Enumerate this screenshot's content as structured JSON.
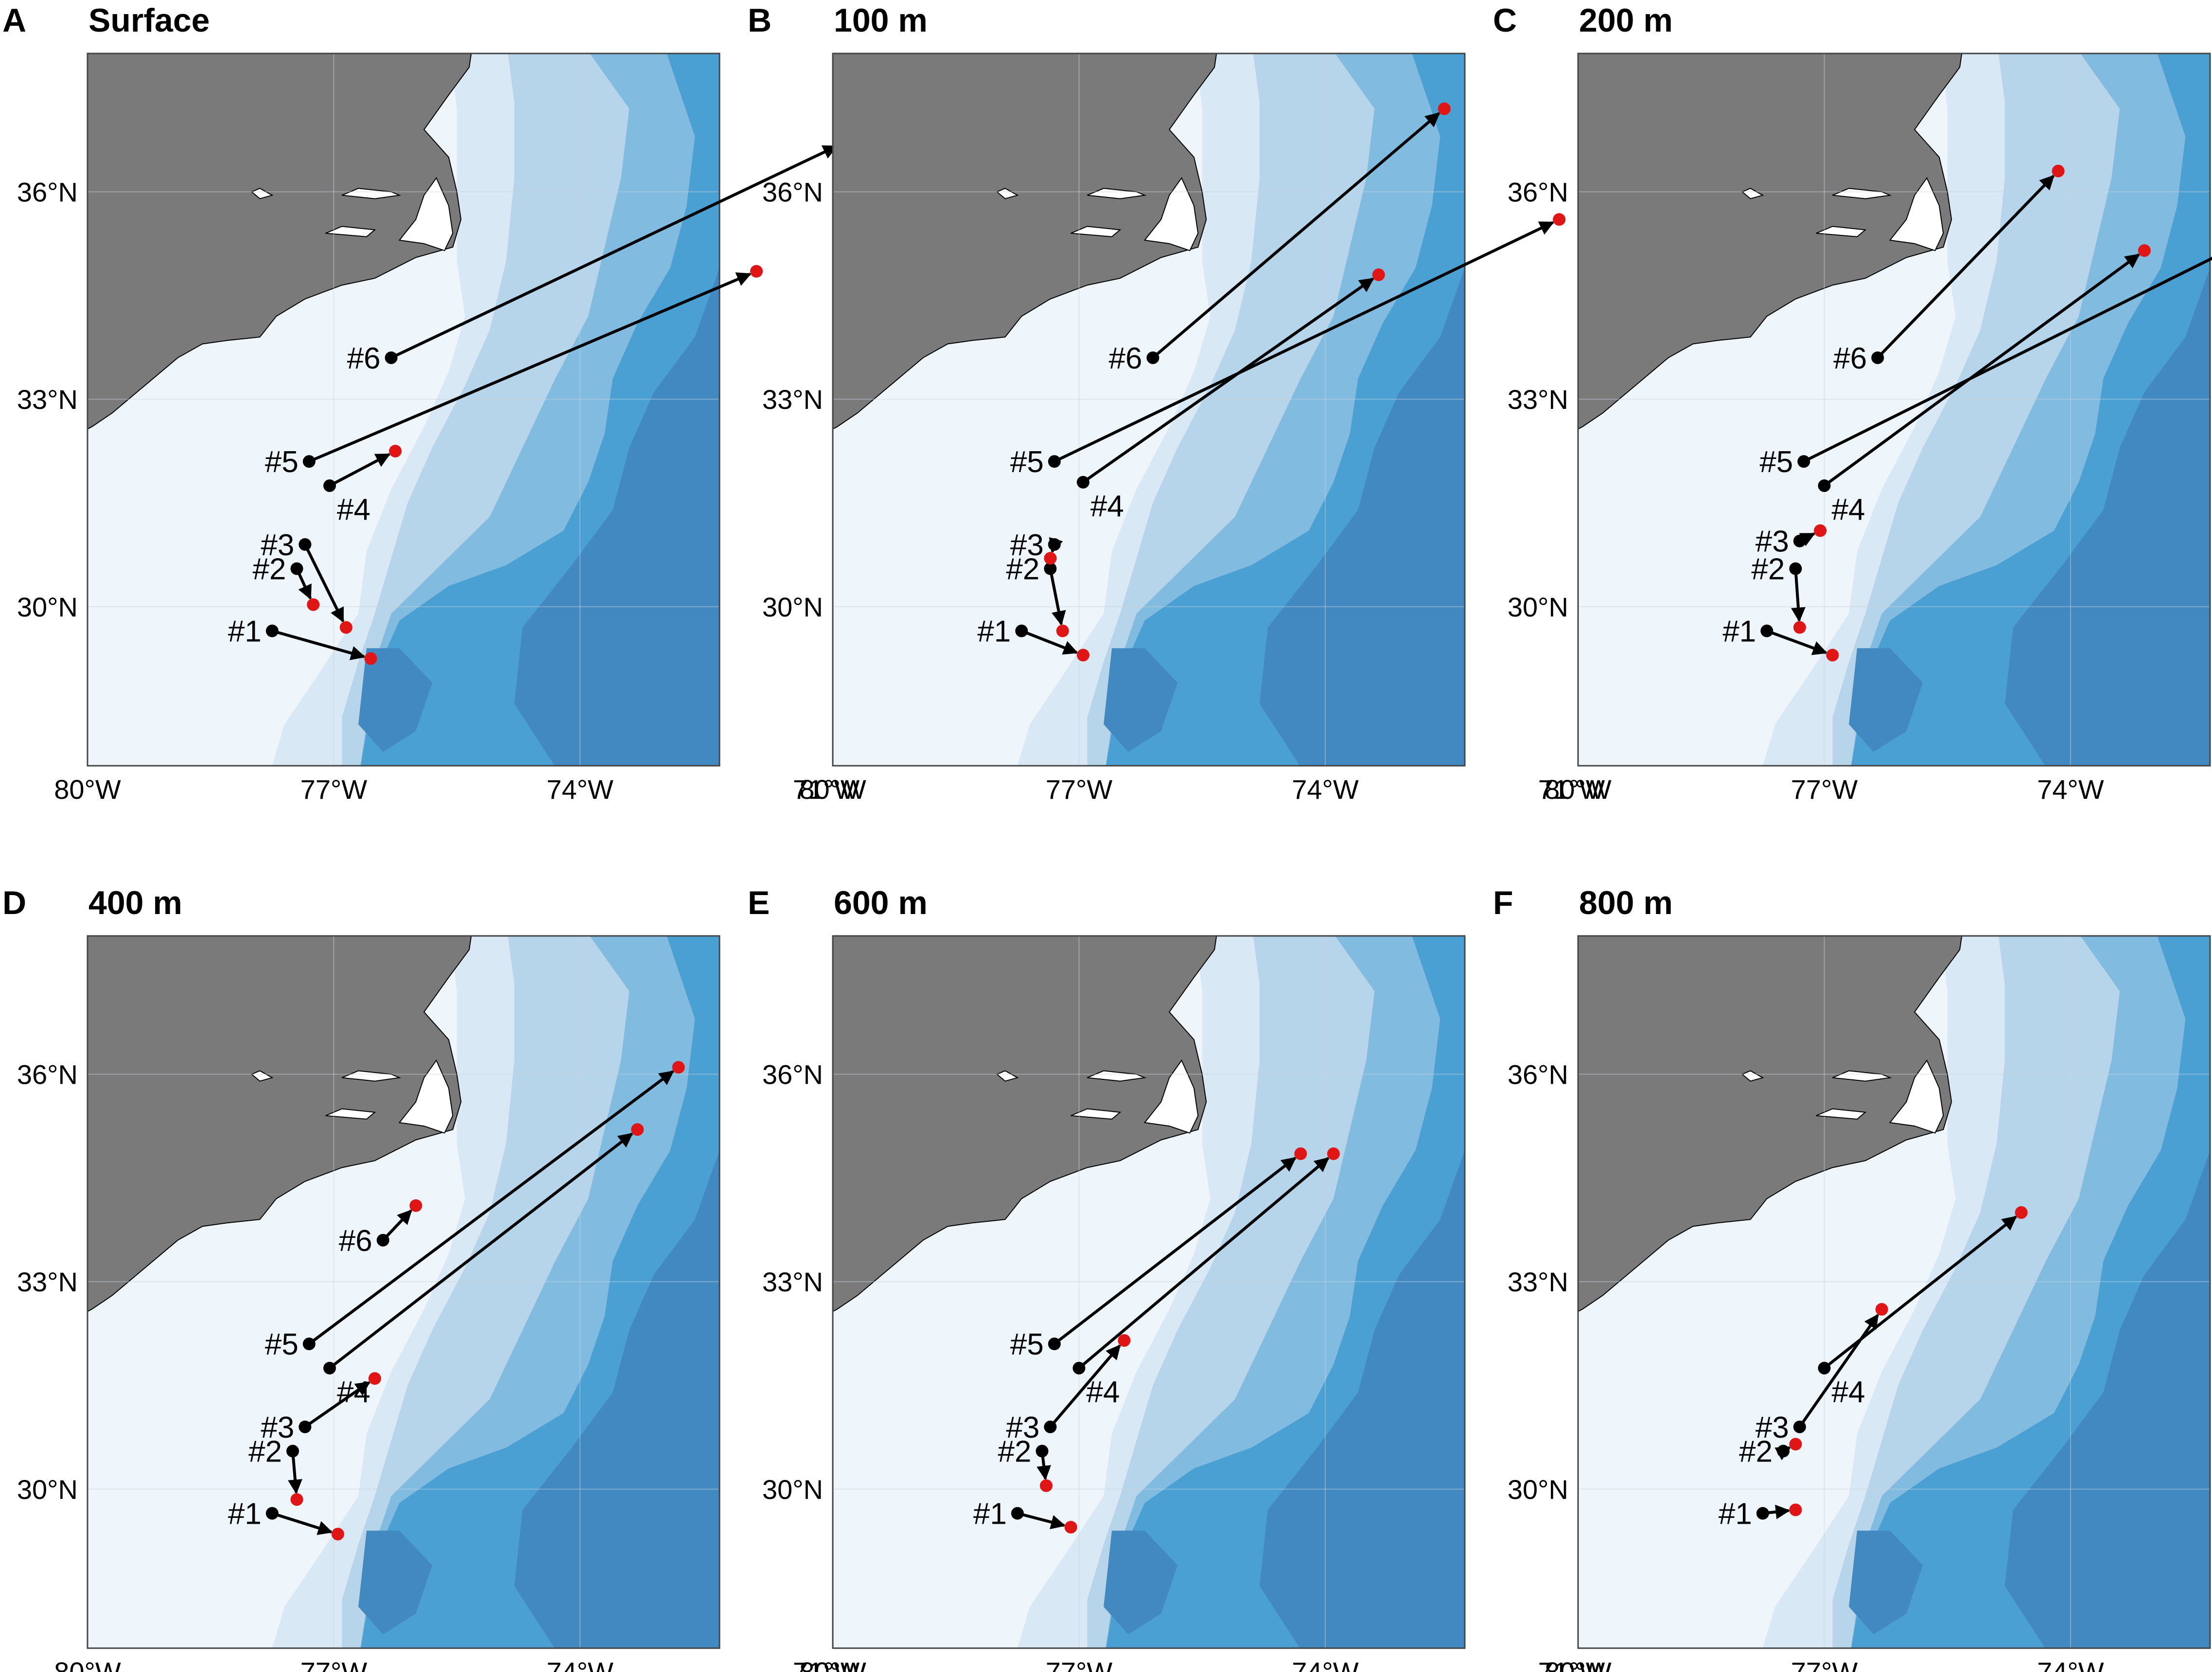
{
  "map": {
    "lon_range": [
      -80,
      -72.3
    ],
    "lat_range": [
      27.7,
      38
    ],
    "x_ticks": [
      -80,
      -77,
      -74,
      -71
    ],
    "x_tick_labels": [
      "80°W",
      "77°W",
      "74°W",
      "71°W"
    ],
    "y_ticks": [
      30,
      33,
      36
    ],
    "y_tick_labels": [
      "30°N",
      "33°N",
      "36°N"
    ],
    "colors": {
      "land": "#7a7a7a",
      "depth_levels": [
        "#eef5fb",
        "#d8e8f4",
        "#b6d4ea",
        "#82bbe0",
        "#4a9fd3",
        "#4289c1"
      ],
      "start_marker": "#000000",
      "end_marker": "#e01515",
      "arrow": "#000000"
    }
  },
  "panels": [
    {
      "letter": "A",
      "title": "Surface",
      "trajectories": [
        {
          "id": "#1",
          "start": [
            -77.75,
            29.65
          ],
          "end": [
            -76.55,
            29.25
          ]
        },
        {
          "id": "#2",
          "start": [
            -77.45,
            30.55
          ],
          "end": [
            -77.25,
            30.03
          ]
        },
        {
          "id": "#3",
          "start": [
            -77.35,
            30.9
          ],
          "end": [
            -76.85,
            29.7
          ]
        },
        {
          "id": "#4",
          "start": [
            -77.05,
            31.75
          ],
          "end": [
            -76.25,
            32.25
          ]
        },
        {
          "id": "#5",
          "start": [
            -77.3,
            32.1
          ],
          "end": [
            -71.85,
            34.85
          ]
        },
        {
          "id": "#6",
          "start": [
            -76.3,
            33.6
          ],
          "end": [
            -70.8,
            36.7
          ]
        }
      ]
    },
    {
      "letter": "B",
      "title": "100 m",
      "trajectories": [
        {
          "id": "#1",
          "start": [
            -77.7,
            29.65
          ],
          "end": [
            -76.95,
            29.3
          ]
        },
        {
          "id": "#2",
          "start": [
            -77.35,
            30.55
          ],
          "end": [
            -77.2,
            29.65
          ]
        },
        {
          "id": "#3",
          "start": [
            -77.3,
            30.9
          ],
          "end": [
            -77.35,
            30.7
          ]
        },
        {
          "id": "#4",
          "start": [
            -76.95,
            31.8
          ],
          "end": [
            -73.35,
            34.8
          ]
        },
        {
          "id": "#5",
          "start": [
            -77.3,
            32.1
          ],
          "end": [
            -71.15,
            35.6
          ]
        },
        {
          "id": "#6",
          "start": [
            -76.1,
            33.6
          ],
          "end": [
            -72.55,
            37.2
          ]
        }
      ]
    },
    {
      "letter": "C",
      "title": "200 m",
      "trajectories": [
        {
          "id": "#1",
          "start": [
            -77.7,
            29.65
          ],
          "end": [
            -76.9,
            29.3
          ]
        },
        {
          "id": "#2",
          "start": [
            -77.35,
            30.55
          ],
          "end": [
            -77.3,
            29.7
          ]
        },
        {
          "id": "#3",
          "start": [
            -77.3,
            30.95
          ],
          "end": [
            -77.05,
            31.1
          ]
        },
        {
          "id": "#4",
          "start": [
            -77.0,
            31.75
          ],
          "end": [
            -73.1,
            35.15
          ]
        },
        {
          "id": "#5",
          "start": [
            -77.25,
            32.1
          ],
          "end": [
            -70.9,
            35.85
          ]
        },
        {
          "id": "#6",
          "start": [
            -76.35,
            33.6
          ],
          "end": [
            -74.15,
            36.3
          ]
        }
      ]
    },
    {
      "letter": "D",
      "title": "400 m",
      "trajectories": [
        {
          "id": "#1",
          "start": [
            -77.75,
            29.65
          ],
          "end": [
            -76.95,
            29.35
          ]
        },
        {
          "id": "#2",
          "start": [
            -77.5,
            30.55
          ],
          "end": [
            -77.45,
            29.85
          ]
        },
        {
          "id": "#3",
          "start": [
            -77.35,
            30.9
          ],
          "end": [
            -76.5,
            31.6
          ]
        },
        {
          "id": "#4",
          "start": [
            -77.05,
            31.75
          ],
          "end": [
            -73.3,
            35.2
          ]
        },
        {
          "id": "#5",
          "start": [
            -77.3,
            32.1
          ],
          "end": [
            -72.8,
            36.1
          ]
        },
        {
          "id": "#6",
          "start": [
            -76.4,
            33.6
          ],
          "end": [
            -76.0,
            34.1
          ]
        }
      ]
    },
    {
      "letter": "E",
      "title": "600 m",
      "trajectories": [
        {
          "id": "#1",
          "start": [
            -77.75,
            29.65
          ],
          "end": [
            -77.1,
            29.45
          ]
        },
        {
          "id": "#2",
          "start": [
            -77.45,
            30.55
          ],
          "end": [
            -77.4,
            30.05
          ]
        },
        {
          "id": "#3",
          "start": [
            -77.35,
            30.9
          ],
          "end": [
            -76.45,
            32.15
          ]
        },
        {
          "id": "#4",
          "start": [
            -77.0,
            31.75
          ],
          "end": [
            -73.9,
            34.85
          ]
        },
        {
          "id": "#5",
          "start": [
            -77.3,
            32.1
          ],
          "end": [
            -74.3,
            34.85
          ]
        }
      ]
    },
    {
      "letter": "F",
      "title": "800 m",
      "trajectories": [
        {
          "id": "#1",
          "start": [
            -77.75,
            29.65
          ],
          "end": [
            -77.35,
            29.7
          ]
        },
        {
          "id": "#2",
          "start": [
            -77.5,
            30.55
          ],
          "end": [
            -77.35,
            30.65
          ]
        },
        {
          "id": "#3",
          "start": [
            -77.3,
            30.9
          ],
          "end": [
            -76.3,
            32.6
          ]
        },
        {
          "id": "#4",
          "start": [
            -77.0,
            31.75
          ],
          "end": [
            -74.6,
            34.0
          ]
        }
      ]
    }
  ]
}
